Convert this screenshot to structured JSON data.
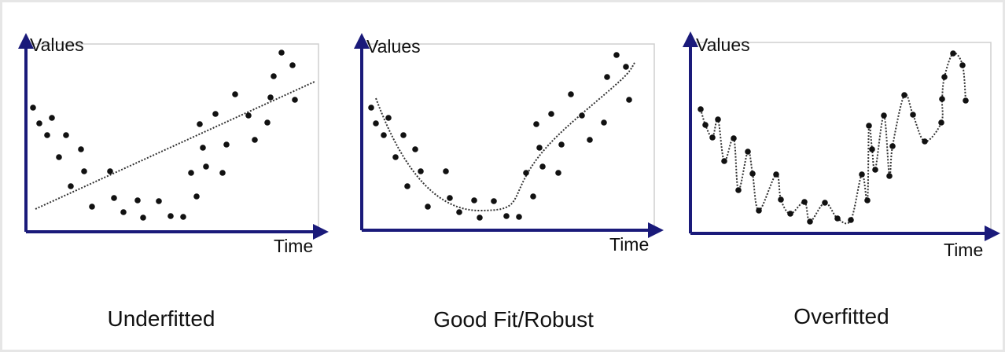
{
  "panels": [
    {
      "y_label": "Values",
      "x_label": "Time",
      "caption": "Underfitted"
    },
    {
      "y_label": "Values",
      "x_label": "Time",
      "caption": "Good Fit/Robust"
    },
    {
      "y_label": "Values",
      "x_label": "Time",
      "caption": "Overfitted"
    }
  ]
}
